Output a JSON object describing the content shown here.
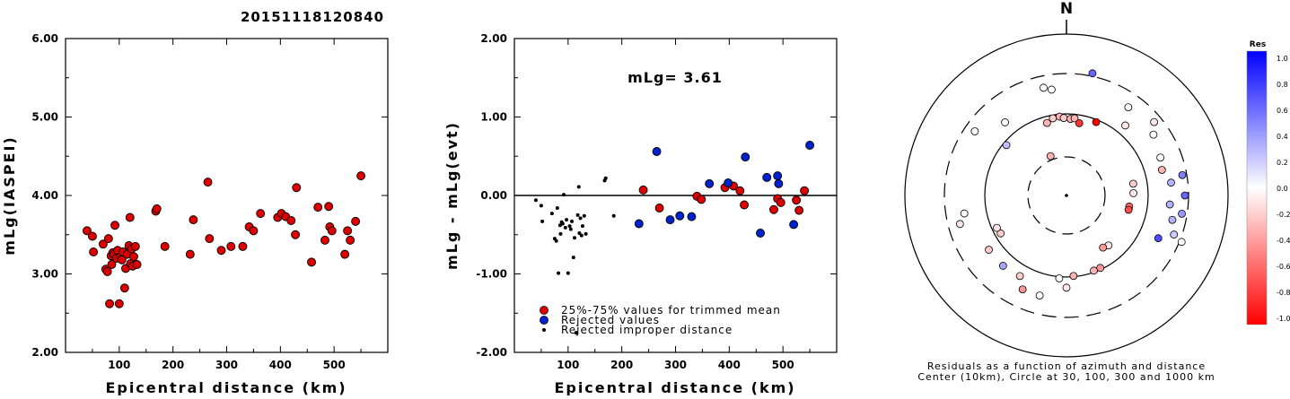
{
  "title": "20151118120840",
  "colors": {
    "accepted": "#dd0000",
    "rejected": "#0022cc",
    "improper": "#000000"
  },
  "chart_data": [
    {
      "type": "scatter",
      "xlabel": "Epicentral distance (km)",
      "ylabel": "mLg(IASPEI)",
      "xlim": [
        0,
        600
      ],
      "ylim": [
        2.0,
        6.0
      ],
      "x_ticks": [
        100,
        200,
        300,
        400,
        500
      ],
      "y_ticks": [
        "2.00",
        "3.00",
        "4.00",
        "5.00",
        "6.00"
      ],
      "series": [
        {
          "color": "#dd0000",
          "points": [
            [
              40,
              3.55
            ],
            [
              50,
              3.48
            ],
            [
              52,
              3.28
            ],
            [
              70,
              3.38
            ],
            [
              75,
              3.06
            ],
            [
              78,
              3.03
            ],
            [
              80,
              3.45
            ],
            [
              82,
              2.62
            ],
            [
              85,
              3.23
            ],
            [
              86,
              3.12
            ],
            [
              88,
              3.27
            ],
            [
              90,
              3.25
            ],
            [
              92,
              3.62
            ],
            [
              95,
              3.2
            ],
            [
              97,
              3.3
            ],
            [
              100,
              2.62
            ],
            [
              103,
              3.22
            ],
            [
              105,
              3.18
            ],
            [
              107,
              3.28
            ],
            [
              110,
              2.82
            ],
            [
              112,
              3.07
            ],
            [
              115,
              3.25
            ],
            [
              118,
              3.36
            ],
            [
              120,
              3.72
            ],
            [
              121,
              3.13
            ],
            [
              123,
              3.32
            ],
            [
              125,
              3.1
            ],
            [
              127,
              3.22
            ],
            [
              130,
              3.35
            ],
            [
              133,
              3.12
            ],
            [
              168,
              3.8
            ],
            [
              170,
              3.83
            ],
            [
              185,
              3.35
            ],
            [
              232,
              3.25
            ],
            [
              238,
              3.69
            ],
            [
              265,
              4.17
            ],
            [
              268,
              3.45
            ],
            [
              290,
              3.3
            ],
            [
              308,
              3.35
            ],
            [
              330,
              3.35
            ],
            [
              342,
              3.6
            ],
            [
              350,
              3.55
            ],
            [
              363,
              3.77
            ],
            [
              395,
              3.72
            ],
            [
              402,
              3.77
            ],
            [
              410,
              3.73
            ],
            [
              420,
              3.68
            ],
            [
              428,
              3.5
            ],
            [
              430,
              4.1
            ],
            [
              458,
              3.15
            ],
            [
              470,
              3.85
            ],
            [
              483,
              3.43
            ],
            [
              490,
              3.86
            ],
            [
              492,
              3.6
            ],
            [
              496,
              3.55
            ],
            [
              520,
              3.25
            ],
            [
              525,
              3.55
            ],
            [
              530,
              3.43
            ],
            [
              540,
              3.67
            ],
            [
              550,
              4.25
            ]
          ]
        }
      ]
    },
    {
      "type": "scatter",
      "xlabel": "Epicentral distance (km)",
      "ylabel": "mLg - mLg(evt)",
      "annotation": "mLg= 3.61",
      "xlim": [
        0,
        600
      ],
      "ylim": [
        -2.0,
        2.0
      ],
      "x_ticks": [
        100,
        200,
        300,
        400,
        500
      ],
      "y_ticks": [
        "-2.00",
        "-1.00",
        "0.00",
        "1.00",
        "2.00"
      ],
      "zero_line": true,
      "series": [
        {
          "name": "25%-75% values for trimmed mean",
          "color": "#dd0000",
          "points": [
            [
              240,
              0.07
            ],
            [
              270,
              -0.16
            ],
            [
              340,
              -0.01
            ],
            [
              348,
              -0.05
            ],
            [
              392,
              0.1
            ],
            [
              408,
              0.12
            ],
            [
              420,
              0.06
            ],
            [
              428,
              -0.12
            ],
            [
              483,
              -0.18
            ],
            [
              490,
              -0.04
            ],
            [
              496,
              -0.09
            ],
            [
              525,
              -0.06
            ],
            [
              530,
              -0.19
            ],
            [
              540,
              0.06
            ]
          ]
        },
        {
          "name": "Rejected values",
          "color": "#0022cc",
          "points": [
            [
              232,
              -0.36
            ],
            [
              265,
              0.56
            ],
            [
              290,
              -0.31
            ],
            [
              308,
              -0.26
            ],
            [
              330,
              -0.27
            ],
            [
              363,
              0.15
            ],
            [
              398,
              0.16
            ],
            [
              430,
              0.49
            ],
            [
              458,
              -0.48
            ],
            [
              470,
              0.23
            ],
            [
              490,
              0.25
            ],
            [
              492,
              0.15
            ],
            [
              520,
              -0.37
            ],
            [
              550,
              0.64
            ]
          ]
        },
        {
          "name": "Rejected improper distance",
          "color": "#000000",
          "points": [
            [
              40,
              -0.06
            ],
            [
              50,
              -0.13
            ],
            [
              52,
              -0.33
            ],
            [
              70,
              -0.23
            ],
            [
              75,
              -0.55
            ],
            [
              78,
              -0.58
            ],
            [
              80,
              -0.16
            ],
            [
              82,
              -0.99
            ],
            [
              85,
              -0.38
            ],
            [
              86,
              -0.49
            ],
            [
              88,
              -0.34
            ],
            [
              90,
              -0.36
            ],
            [
              92,
              0.01
            ],
            [
              95,
              -0.41
            ],
            [
              97,
              -0.31
            ],
            [
              100,
              -0.99
            ],
            [
              103,
              -0.39
            ],
            [
              105,
              -0.43
            ],
            [
              107,
              -0.33
            ],
            [
              110,
              -0.79
            ],
            [
              112,
              -0.54
            ],
            [
              115,
              -1.75
            ],
            [
              118,
              -0.25
            ],
            [
              120,
              0.11
            ],
            [
              121,
              -0.48
            ],
            [
              123,
              -0.29
            ],
            [
              125,
              -0.51
            ],
            [
              127,
              -0.39
            ],
            [
              130,
              -0.26
            ],
            [
              133,
              -0.49
            ],
            [
              168,
              0.19
            ],
            [
              170,
              0.22
            ],
            [
              185,
              -0.26
            ]
          ]
        }
      ]
    },
    {
      "type": "scatter",
      "subtype": "polar",
      "north_label": "N",
      "caption_lines": [
        "Residuals as a function of azimuth and distance",
        "Center (10km), Circle at 30, 100, 300 and 1000 km"
      ],
      "colorbar": {
        "title": "Res",
        "labels": [
          "1.0",
          "0.8",
          "0.6",
          "0.4",
          "0.2",
          "0.0",
          "-0.2",
          "-0.4",
          "-0.6",
          "-0.8",
          "-1.0"
        ]
      },
      "points": [
        [
          348,
          1.35,
          0.0
        ],
        [
          352,
          1.31,
          0.0
        ],
        [
          12,
          1.53,
          0.6
        ],
        [
          320,
          1.17,
          0.0
        ],
        [
          345,
          0.92,
          -0.3
        ],
        [
          350,
          0.96,
          -0.2
        ],
        [
          355,
          0.97,
          -0.3
        ],
        [
          358,
          0.95,
          -0.2
        ],
        [
          3,
          0.94,
          -0.3
        ],
        [
          6,
          0.95,
          -0.3
        ],
        [
          10,
          0.9,
          -0.8
        ],
        [
          22,
          0.97,
          -1.0
        ],
        [
          305,
          1.37,
          0.0
        ],
        [
          338,
          0.52,
          -0.3
        ],
        [
          310,
          0.96,
          0.25
        ],
        [
          40,
          1.12,
          -0.1
        ],
        [
          35,
          1.32,
          0.0
        ],
        [
          50,
          1.4,
          -0.1
        ],
        [
          55,
          1.3,
          0.0
        ],
        [
          68,
          1.24,
          0.0
        ],
        [
          75,
          1.21,
          -0.3
        ],
        [
          80,
          1.44,
          0.5
        ],
        [
          83,
          1.29,
          0.3
        ],
        [
          90,
          1.45,
          0.6
        ],
        [
          95,
          1.27,
          0.3
        ],
        [
          99,
          1.43,
          0.4
        ],
        [
          103,
          1.33,
          0.3
        ],
        [
          110,
          1.4,
          0.2
        ],
        [
          112,
          1.52,
          0.0
        ],
        [
          115,
          1.24,
          0.7
        ],
        [
          80,
          0.83,
          -0.2
        ],
        [
          88,
          0.82,
          -0.1
        ],
        [
          100,
          0.78,
          -0.6
        ],
        [
          103,
          0.78,
          -0.7
        ],
        [
          140,
          0.8,
          -0.1
        ],
        [
          145,
          0.78,
          -0.4
        ],
        [
          155,
          0.98,
          -0.4
        ],
        [
          160,
          0.98,
          -0.3
        ],
        [
          175,
          0.99,
          -0.3
        ],
        [
          180,
          1.13,
          -0.1
        ],
        [
          185,
          1.02,
          0.0
        ],
        [
          195,
          1.27,
          0.0
        ],
        [
          210,
          1.14,
          -0.2
        ],
        [
          222,
          1.16,
          0.35
        ],
        [
          240,
          0.93,
          -0.2
        ],
        [
          245,
          0.94,
          -0.1
        ],
        [
          255,
          1.35,
          -0.1
        ],
        [
          260,
          1.27,
          0.0
        ],
        [
          205,
          1.27,
          -0.4
        ],
        [
          235,
          1.16,
          -0.2
        ]
      ]
    }
  ]
}
